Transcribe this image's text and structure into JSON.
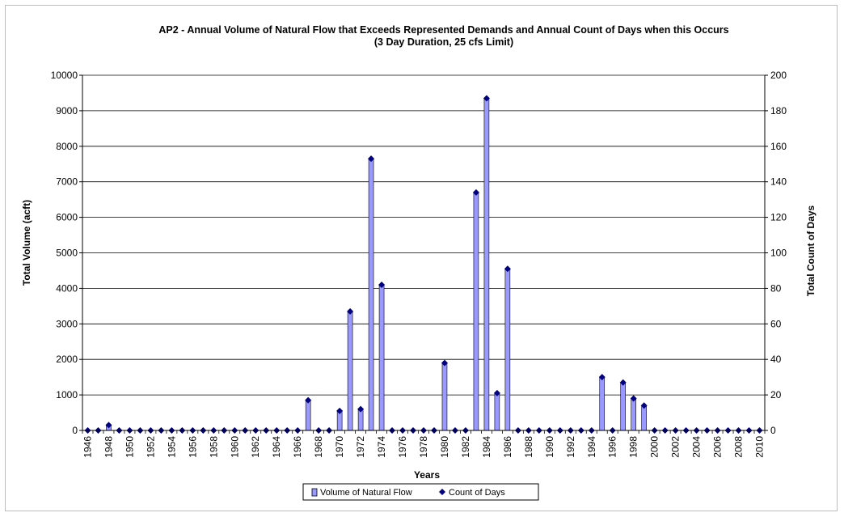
{
  "chart_data": {
    "type": "bar",
    "title": "AP2 - Annual Volume of Natural Flow that Exceeds Represented Demands and Annual Count of Days when this Occurs",
    "subtitle": "(3 Day Duration, 25 cfs Limit)",
    "xlabel": "Years",
    "ylabel": "Total Volume (acft)",
    "y2label": "Total Count of Days",
    "ylim": [
      0,
      10000
    ],
    "y2lim": [
      0,
      200
    ],
    "yticks": [
      "0",
      "1000",
      "2000",
      "3000",
      "4000",
      "5000",
      "6000",
      "7000",
      "8000",
      "9000",
      "10000"
    ],
    "y2ticks": [
      "0",
      "20",
      "40",
      "60",
      "80",
      "100",
      "120",
      "140",
      "160",
      "180",
      "200"
    ],
    "categories": [
      1946,
      1947,
      1948,
      1949,
      1950,
      1951,
      1952,
      1953,
      1954,
      1955,
      1956,
      1957,
      1958,
      1959,
      1960,
      1961,
      1962,
      1963,
      1964,
      1965,
      1966,
      1967,
      1968,
      1969,
      1970,
      1971,
      1972,
      1973,
      1974,
      1975,
      1976,
      1977,
      1978,
      1979,
      1980,
      1981,
      1982,
      1983,
      1984,
      1985,
      1986,
      1987,
      1988,
      1989,
      1990,
      1991,
      1992,
      1993,
      1994,
      1995,
      1996,
      1997,
      1998,
      1999,
      2000,
      2001,
      2002,
      2003,
      2004,
      2005,
      2006,
      2007,
      2008,
      2009,
      2010
    ],
    "xtick_labels": [
      "1946",
      "1948",
      "1950",
      "1952",
      "1954",
      "1956",
      "1958",
      "1960",
      "1962",
      "1964",
      "1966",
      "1968",
      "1970",
      "1972",
      "1974",
      "1976",
      "1978",
      "1980",
      "1982",
      "1984",
      "1986",
      "1988",
      "1990",
      "1992",
      "1994",
      "1996",
      "1998",
      "2000",
      "2002",
      "2004",
      "2006",
      "2008",
      "2010"
    ],
    "series": [
      {
        "name": "Volume of Natural Flow",
        "type": "bar",
        "axis": "left",
        "color": "#9999ff",
        "values": [
          0,
          0,
          150,
          0,
          0,
          0,
          0,
          0,
          0,
          0,
          0,
          0,
          0,
          0,
          0,
          0,
          0,
          0,
          0,
          0,
          0,
          850,
          0,
          0,
          540,
          3350,
          600,
          7650,
          4100,
          0,
          0,
          0,
          0,
          0,
          1900,
          0,
          0,
          6700,
          9350,
          1050,
          4550,
          0,
          0,
          0,
          0,
          0,
          0,
          0,
          0,
          1500,
          0,
          1350,
          900,
          700,
          0,
          0,
          0,
          0,
          0,
          0,
          0,
          0,
          0,
          0,
          0
        ]
      },
      {
        "name": "Count of Days",
        "type": "scatter",
        "axis": "right",
        "color": "#000080",
        "values": [
          0,
          0,
          3,
          0,
          0,
          0,
          0,
          0,
          0,
          0,
          0,
          0,
          0,
          0,
          0,
          0,
          0,
          0,
          0,
          0,
          0,
          17,
          0,
          0,
          11,
          67,
          12,
          153,
          82,
          0,
          0,
          0,
          0,
          0,
          38,
          0,
          0,
          134,
          187,
          21,
          91,
          0,
          0,
          0,
          0,
          0,
          0,
          0,
          0,
          30,
          0,
          27,
          18,
          14,
          0,
          0,
          0,
          0,
          0,
          0,
          0,
          0,
          0,
          0,
          0
        ]
      }
    ],
    "grid": true,
    "legend_position": "bottom"
  }
}
